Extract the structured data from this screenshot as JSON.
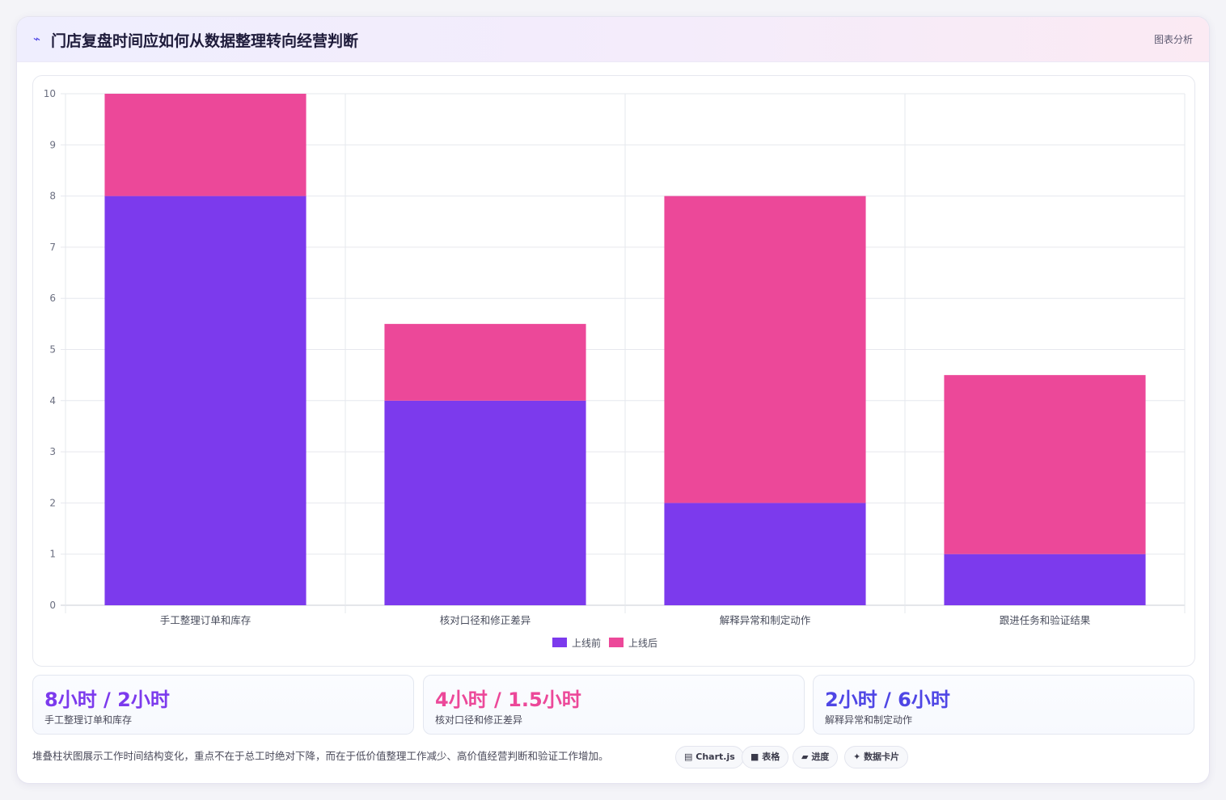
{
  "header": {
    "icon": "chart-line-icon",
    "title": "门店复盘时间应如何从数据整理转向经营判断",
    "badge": "图表分析"
  },
  "chart_data": {
    "type": "bar",
    "stacked": true,
    "categories": [
      "手工整理订单和库存",
      "核对口径和修正差异",
      "解释异常和制定动作",
      "跟进任务和验证结果"
    ],
    "series": [
      {
        "name": "上线前",
        "values": [
          8,
          4,
          2,
          1
        ],
        "color": "#7c3aed"
      },
      {
        "name": "上线后",
        "values": [
          2,
          1.5,
          6,
          3.5
        ],
        "color": "#ec4899"
      }
    ],
    "yticks": [
      0,
      1,
      2,
      3,
      4,
      5,
      6,
      7,
      8,
      9,
      10
    ],
    "ylim": [
      0,
      10
    ],
    "grid": true,
    "legend": "bottom-center"
  },
  "stats": [
    {
      "value": "8小时 / 2小时",
      "label": "手工整理订单和库存",
      "color": "#7c3aed"
    },
    {
      "value": "4小时 / 1.5小时",
      "label": "核对口径和修正差异",
      "color": "#ec4899"
    },
    {
      "value": "2小时 / 6小时",
      "label": "解释异常和制定动作",
      "color": "#4f46e5"
    }
  ],
  "footer": {
    "note": "堆叠柱状图展示工作时间结构变化，重点不在于总工时绝对下降，而在于低价值整理工作减少、高价值经营判断和验证工作增加。",
    "tags": [
      {
        "icon": "chart-icon",
        "symbol": "▤",
        "label": "Chart.js"
      },
      {
        "icon": "table-icon",
        "symbol": "■",
        "label": "表格"
      },
      {
        "icon": "progress-icon",
        "symbol": "▰",
        "label": "进度"
      },
      {
        "icon": "sparkle-icon",
        "symbol": "✦",
        "label": "数据卡片"
      }
    ]
  }
}
